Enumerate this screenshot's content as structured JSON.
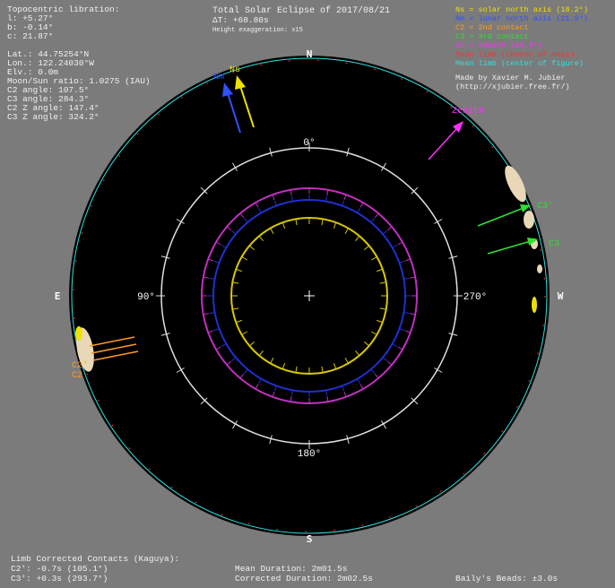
{
  "header": {
    "title": "Total Solar Eclipse of 2017/08/21",
    "delta_t": "ΔT: +68.80s",
    "exaggeration": "Height exaggeration: x15"
  },
  "info": [
    "Topocentric libration:",
    "l: +5.27°",
    "b: -0.14°",
    "c: 21.87°",
    "Lat.: 44.75254°N",
    "Lon.: 122.24030°W",
    "Elv.: 0.0m",
    "Moon/Sun ratio: 1.0275 (IAU)",
    "C2 angle: 107.5°",
    "C3 angle: 284.3°",
    "C2 Z angle: 147.4°",
    "C3 Z angle: 324.2°"
  ],
  "legend": [
    {
      "text": "Ns = solar north axis (18.2°)",
      "color": "#f0e000"
    },
    {
      "text": "Nm = lunar north axis (21.9°)",
      "color": "#3050ff"
    },
    {
      "text": "C2 = 2nd contact",
      "color": "#ff9a20"
    },
    {
      "text": "C3 = 3rd contact",
      "color": "#30e030"
    },
    {
      "text": "Zn = zenith (24.9°)",
      "color": "#ff30ff"
    },
    {
      "text": "Mean limb (center of mass)",
      "color": "#ff3030"
    },
    {
      "text": "Mean limb (center of figure)",
      "color": "#30e0e0"
    }
  ],
  "credit": [
    "Made by Xavier M. Jubier",
    "(http://xjubier.free.fr/)"
  ],
  "diagram": {
    "north": "N",
    "south": "S",
    "east": "E",
    "west": "W",
    "angle_0": "0°",
    "angle_90": "90°",
    "angle_180": "180°",
    "angle_270": "270°",
    "ns": "Ns",
    "nm": "Nm",
    "zenith": "Zenith",
    "c3_prime": "C3'",
    "c3": "C3",
    "c2_prime": "C2'",
    "c2": "C2"
  },
  "footer": {
    "heading": "Limb Corrected Contacts (Kaguya):",
    "c2": "C2': -0.7s (105.1°)",
    "c3": "C3': +0.3s (293.7°)",
    "mean_duration": "Mean Duration: 2m01.5s",
    "corrected_duration": "Corrected Duration: 2m02.5s",
    "beads": "Baily's Beads: ±3.0s"
  }
}
